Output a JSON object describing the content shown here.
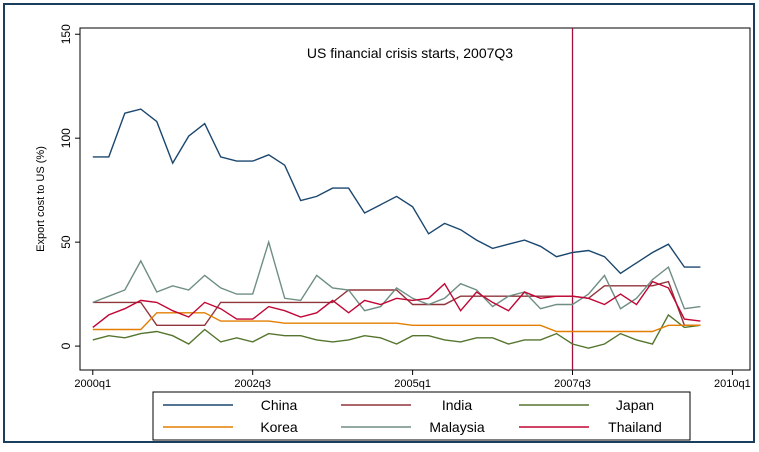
{
  "chart_data": {
    "type": "line",
    "ylabel": "Export cost to US (%)",
    "annotation": {
      "text": "US financial crisis starts, 2007Q3",
      "x": 190
    },
    "x": [
      160,
      161,
      162,
      163,
      164,
      165,
      166,
      167,
      168,
      169,
      170,
      171,
      172,
      173,
      174,
      175,
      176,
      177,
      178,
      179,
      180,
      181,
      182,
      183,
      184,
      185,
      186,
      187,
      188,
      189,
      190,
      191,
      192,
      193,
      194,
      195,
      196,
      197,
      198
    ],
    "xlim": [
      159.2,
      201.1
    ],
    "xticks": [
      {
        "value": 160,
        "label": "2000q1"
      },
      {
        "value": 170,
        "label": "2002q3"
      },
      {
        "value": 180,
        "label": "2005q1"
      },
      {
        "value": 190,
        "label": "2007q3"
      },
      {
        "value": 200,
        "label": "2010q1"
      }
    ],
    "ylim": [
      -11.5,
      153
    ],
    "yticks": [
      0,
      50,
      100,
      150
    ],
    "legend": "bottom",
    "series": [
      {
        "name": "China",
        "color": "#1a476f",
        "values": [
          91,
          91,
          112,
          114,
          108,
          88,
          101,
          107,
          91,
          89,
          89,
          92,
          87,
          70,
          72,
          76,
          76,
          64,
          68,
          72,
          67,
          54,
          59,
          56,
          51,
          47,
          49,
          51,
          48,
          43,
          45,
          46,
          43,
          35,
          40,
          45,
          49,
          38,
          38
        ]
      },
      {
        "name": "India",
        "color": "#90353b",
        "values": [
          21,
          21,
          21,
          21,
          10,
          10,
          10,
          10,
          21,
          21,
          21,
          21,
          21,
          21,
          21,
          21,
          27,
          27,
          27,
          27,
          20,
          20,
          20,
          24,
          24,
          24,
          24,
          24,
          24,
          24,
          24,
          23,
          29,
          29,
          29,
          29,
          31,
          10,
          10
        ]
      },
      {
        "name": "Japan",
        "color": "#55752f",
        "values": [
          3,
          5,
          4,
          6,
          7,
          5,
          1,
          8,
          2,
          4,
          2,
          6,
          5,
          5,
          3,
          2,
          3,
          5,
          4,
          1,
          5,
          5,
          3,
          2,
          4,
          4,
          1,
          3,
          3,
          6,
          1,
          -1,
          1,
          6,
          3,
          1,
          15,
          9,
          10
        ]
      },
      {
        "name": "Korea",
        "color": "#e37e00",
        "values": [
          8,
          8,
          8,
          8,
          16,
          16,
          16,
          16,
          12,
          12,
          12,
          12,
          11,
          11,
          11,
          11,
          11,
          11,
          11,
          11,
          10,
          10,
          10,
          10,
          10,
          10,
          10,
          10,
          10,
          7,
          7,
          7,
          7,
          7,
          7,
          7,
          10,
          10,
          10
        ]
      },
      {
        "name": "Malaysia",
        "color": "#6e8e84",
        "values": [
          21,
          24,
          27,
          41,
          26,
          29,
          27,
          34,
          28,
          25,
          25,
          50,
          23,
          22,
          34,
          28,
          27,
          17,
          19,
          28,
          23,
          20,
          23,
          30,
          27,
          19,
          24,
          26,
          18,
          20,
          20,
          25,
          34,
          18,
          23,
          32,
          38,
          18,
          19
        ]
      },
      {
        "name": "Thailand",
        "color": "#c10534",
        "values": [
          9,
          15,
          18,
          22,
          21,
          17,
          14,
          21,
          18,
          13,
          13,
          19,
          17,
          14,
          16,
          22,
          16,
          22,
          20,
          23,
          22,
          23,
          30,
          17,
          26,
          21,
          17,
          26,
          23,
          24,
          24,
          23,
          20,
          25,
          20,
          31,
          28,
          13,
          12
        ]
      }
    ]
  }
}
